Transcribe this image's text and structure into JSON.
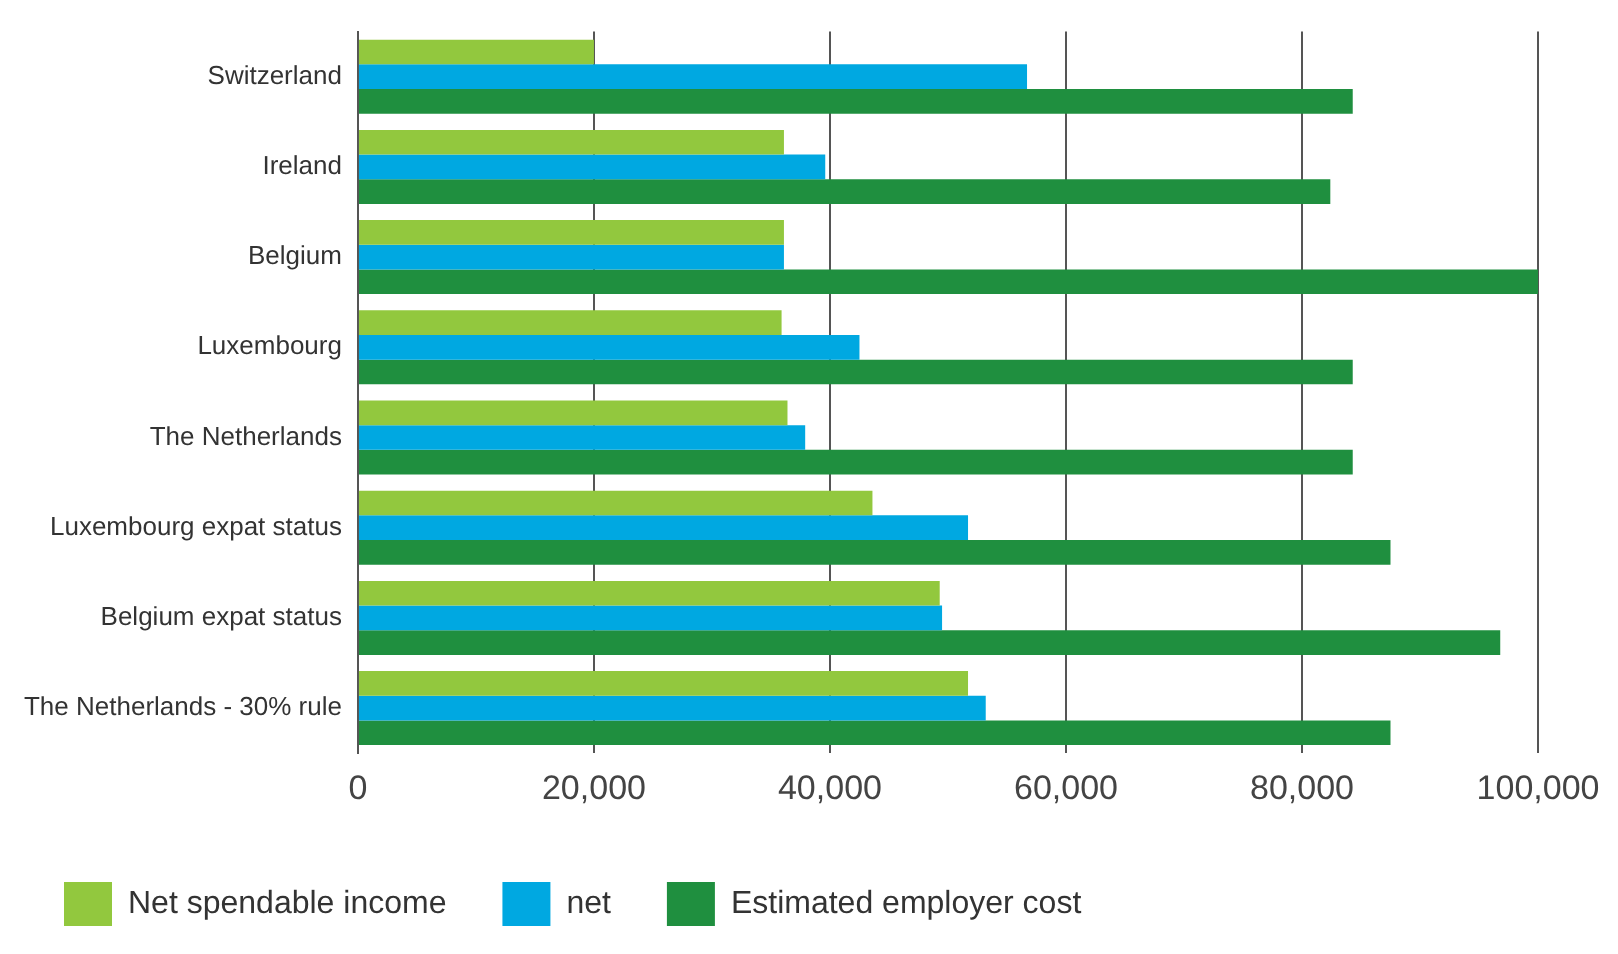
{
  "chart_data": {
    "type": "bar",
    "orientation": "horizontal",
    "categories": [
      "Switzerland",
      "Ireland",
      "Belgium",
      "Luxembourg",
      "The Netherlands",
      "Luxembourg expat status",
      "Belgium expat status",
      "The Netherlands - 30% rule"
    ],
    "series": [
      {
        "name": "Net spendable income",
        "color": "#92c83e",
        "values": [
          20000,
          36100,
          36100,
          35900,
          36400,
          43600,
          49300,
          51700
        ]
      },
      {
        "name": "net",
        "color": "#00a8e1",
        "values": [
          56700,
          39600,
          36100,
          42500,
          37900,
          51700,
          49500,
          53200
        ]
      },
      {
        "name": "Estimated employer cost",
        "color": "#1f8f3f",
        "values": [
          84300,
          82400,
          100000,
          84300,
          84300,
          87500,
          96800,
          87500
        ]
      }
    ],
    "xlim": [
      0,
      100000
    ],
    "xticks": [
      0,
      {
        "value": 20000,
        "label": "20,000"
      },
      {
        "value": 40000,
        "label": "40,000"
      },
      {
        "value": 60000,
        "label": "60,000"
      },
      {
        "value": 80000,
        "label": "80,000"
      },
      {
        "value": 100000,
        "label": "100,000"
      }
    ],
    "grid": "x",
    "legend": "bottom"
  }
}
